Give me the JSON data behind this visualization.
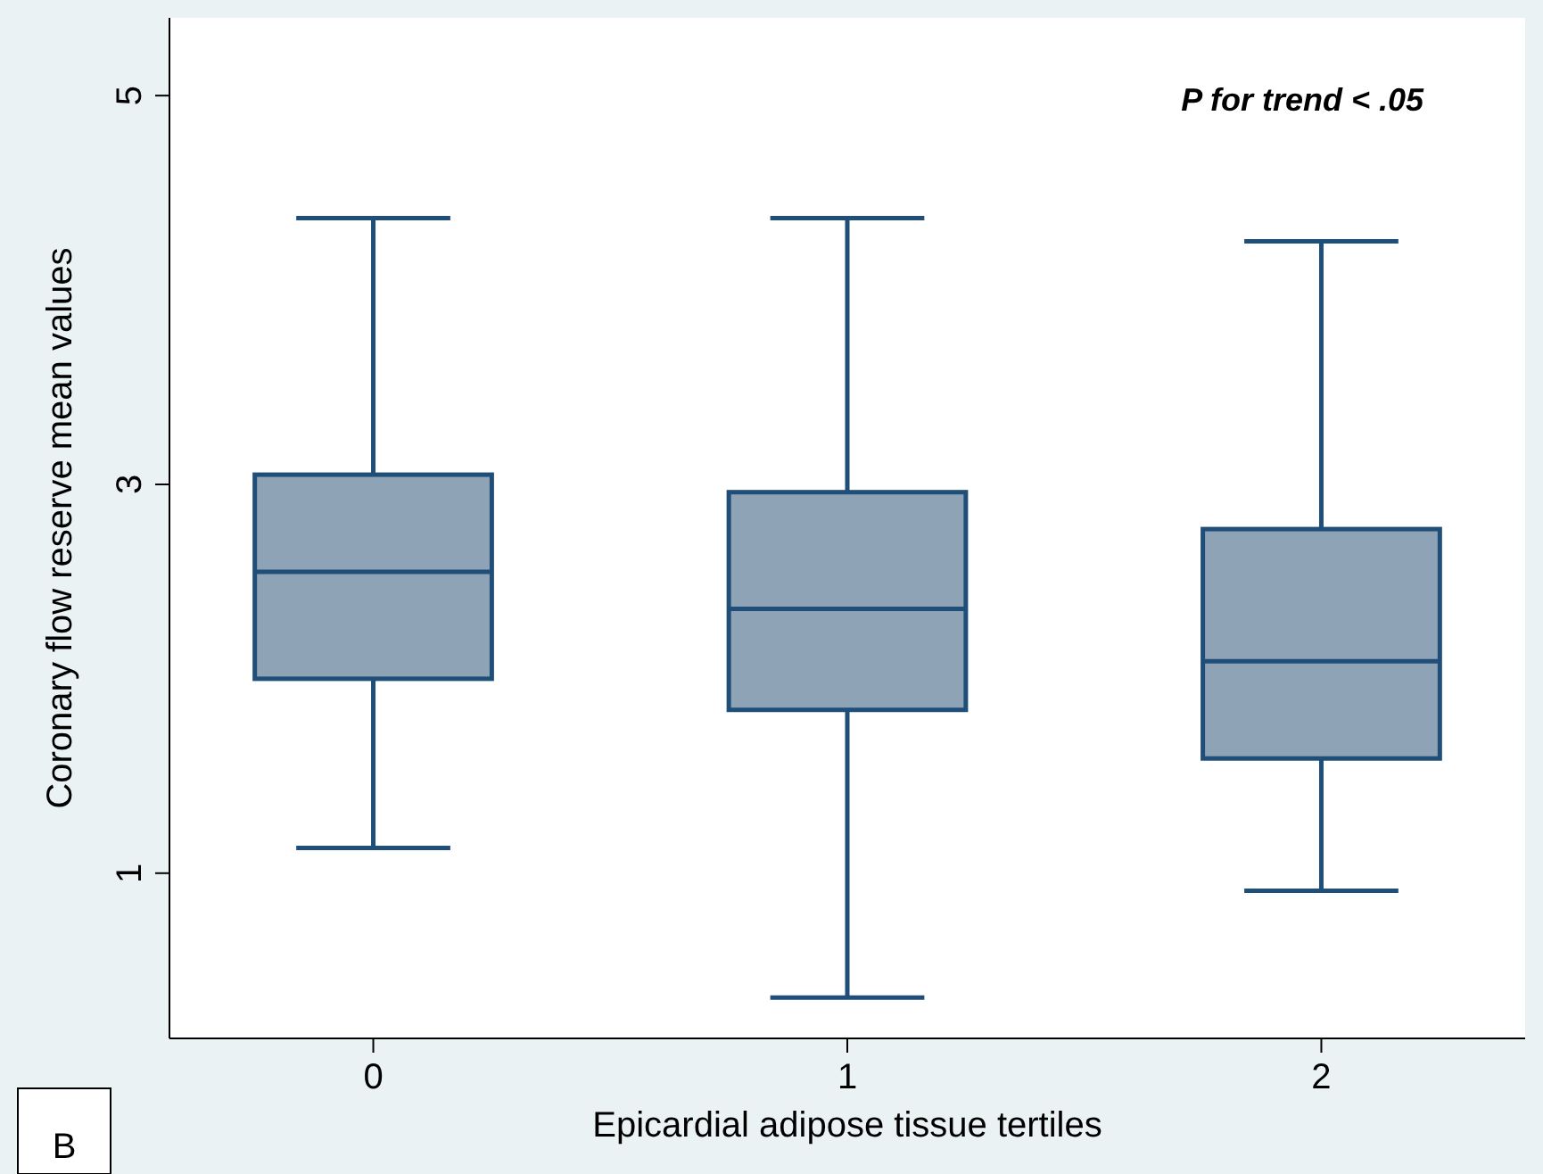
{
  "chart_data": {
    "type": "box",
    "xlabel": "Epicardial adipose tissue tertiles",
    "ylabel": "Coronary flow reserve mean values",
    "categories": [
      "0",
      "1",
      "2"
    ],
    "boxes": [
      {
        "low": 1.13,
        "q1": 2.0,
        "median": 2.55,
        "q3": 3.05,
        "high": 4.37
      },
      {
        "low": 0.36,
        "q1": 1.84,
        "median": 2.36,
        "q3": 2.96,
        "high": 4.37
      },
      {
        "low": 0.91,
        "q1": 1.59,
        "median": 2.09,
        "q3": 2.77,
        "high": 4.25
      }
    ],
    "color": "#8ea3b6",
    "ylim": [
      0.15,
      5.4
    ],
    "yticks": [
      1,
      3,
      5
    ],
    "grid": false,
    "annotations": [
      "P for trend < .05",
      "B"
    ]
  }
}
